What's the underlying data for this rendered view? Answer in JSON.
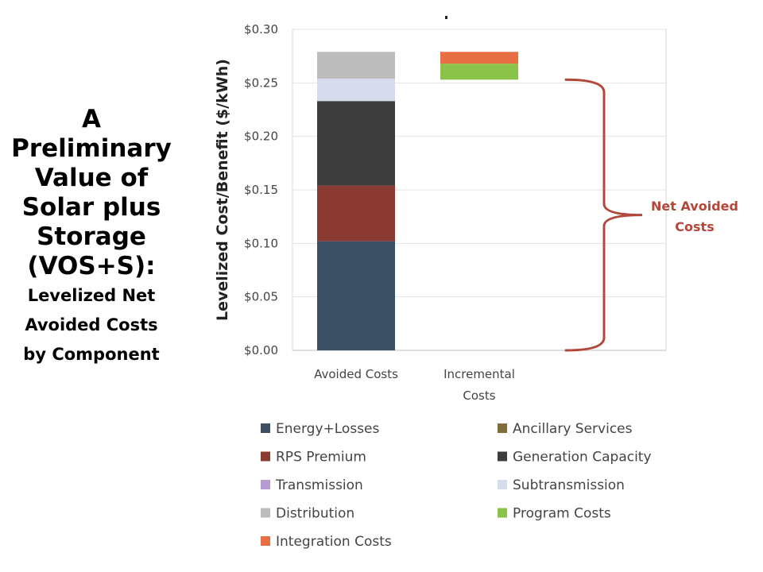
{
  "title": {
    "lines_big": [
      "A",
      "Preliminary",
      "Value of",
      "Solar plus",
      "Storage",
      "(VOS+S):"
    ],
    "lines_small": [
      "Levelized Net",
      "Avoided Costs",
      "by Component"
    ]
  },
  "chart_data": {
    "type": "bar",
    "stacked": true,
    "categories": [
      "Avoided Costs",
      "Incremental Costs"
    ],
    "category_lines": [
      [
        "Avoided Costs"
      ],
      [
        "Incremental",
        "Costs"
      ]
    ],
    "ylabel": "Levelized Cost/Benefit ($/kWh)",
    "ylim": [
      0,
      0.3
    ],
    "yticks": [
      0,
      0.05,
      0.1,
      0.15,
      0.2,
      0.25,
      0.3
    ],
    "ytick_labels": [
      "$0.00",
      "$0.05",
      "$0.10",
      "$0.15",
      "$0.20",
      "$0.25",
      "$0.30"
    ],
    "grid": true,
    "series": [
      {
        "name": "Energy+Losses",
        "color": "#3d4f63",
        "values": [
          0.102,
          0
        ]
      },
      {
        "name": "RPS Premium",
        "color": "#8b3a32",
        "values": [
          0.052,
          0
        ]
      },
      {
        "name": "Generation Capacity",
        "color": "#3c3c3c",
        "values": [
          0.079,
          0
        ]
      },
      {
        "name": "Subtransmission",
        "color": "#d6dcec",
        "values": [
          0.021,
          0
        ]
      },
      {
        "name": "Distribution",
        "color": "#bcbcbc",
        "values": [
          0.025,
          0
        ]
      },
      {
        "name": "Program Costs",
        "color": "#8bc34a",
        "values": [
          0,
          0.015
        ]
      },
      {
        "name": "Integration Costs",
        "color": "#e76f43",
        "values": [
          0,
          0.011
        ]
      }
    ],
    "incremental_base": 0.253,
    "annotation": {
      "lines": [
        "Net Avoided",
        "Costs"
      ],
      "color": "#b5473a",
      "range": [
        0,
        0.253
      ]
    },
    "legend": {
      "position": "bottom",
      "items": [
        {
          "name": "Energy+Losses",
          "color": "#3d4f63"
        },
        {
          "name": "Ancillary Services",
          "color": "#7e6f3a"
        },
        {
          "name": "RPS Premium",
          "color": "#8b3a32"
        },
        {
          "name": "Generation Capacity",
          "color": "#3c3c3c"
        },
        {
          "name": "Transmission",
          "color": "#b79cd4"
        },
        {
          "name": "Subtransmission",
          "color": "#d6dcec"
        },
        {
          "name": "Distribution",
          "color": "#bcbcbc"
        },
        {
          "name": "Program Costs",
          "color": "#8bc34a"
        },
        {
          "name": "Integration Costs",
          "color": "#e76f43"
        }
      ]
    }
  }
}
